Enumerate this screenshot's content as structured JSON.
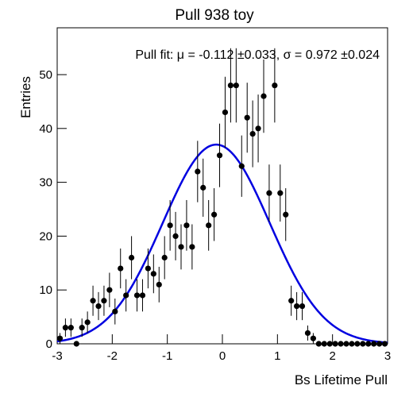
{
  "chart_data": {
    "type": "histogram",
    "title": "Pull 938 toy",
    "x_label": "Bs Lifetime Pull",
    "y_label": "Entries",
    "annotation": "Pull fit: μ = -0.112 ±0.033, σ = 0.972 ±0.024",
    "bins": [
      -3,
      -2.9,
      -2.8,
      -2.7,
      -2.6,
      -2.5,
      -2.4,
      -2.3,
      -2.2,
      -2.1,
      -2,
      -1.9,
      -1.8,
      -1.7,
      -1.6,
      -1.5,
      -1.4,
      -1.3,
      -1.2,
      -1.1,
      -1,
      -0.9,
      -0.8,
      -0.7,
      -0.6,
      -0.5,
      -0.4,
      -0.3,
      -0.2,
      -0.1,
      0,
      0.1,
      0.2,
      0.3,
      0.4,
      0.5,
      0.6,
      0.7,
      0.8,
      0.9,
      1,
      1.1,
      1.2,
      1.3,
      1.4,
      1.5,
      1.6,
      1.7,
      1.8,
      1.9,
      2,
      2.1,
      2.2,
      2.3,
      2.4,
      2.5,
      2.6,
      2.7,
      2.8,
      2.9,
      3
    ],
    "values": [
      1,
      3,
      3,
      0,
      3,
      4,
      8,
      7,
      8,
      10,
      6,
      14,
      9,
      16,
      9,
      9,
      14,
      13,
      11,
      16,
      22,
      20,
      18,
      22,
      18,
      32,
      29,
      22,
      24,
      35,
      43,
      48,
      48,
      33,
      42,
      39,
      40,
      46,
      28,
      48,
      28,
      24,
      8,
      7,
      7,
      2,
      1,
      0,
      0,
      0,
      0,
      0,
      0,
      0,
      0,
      0,
      0,
      0,
      0,
      0
    ],
    "errors": [
      1,
      1.7,
      1.7,
      0,
      1.7,
      2,
      2.8,
      2.6,
      2.8,
      3.2,
      2.4,
      3.7,
      3,
      4,
      3,
      3,
      3.7,
      3.6,
      3.3,
      4,
      4.7,
      4.5,
      4.2,
      4.7,
      4.2,
      5.7,
      5.4,
      4.7,
      4.9,
      5.9,
      6.6,
      6.9,
      6.9,
      5.7,
      6.5,
      6.2,
      6.3,
      6.8,
      5.3,
      6.9,
      5.3,
      4.9,
      2.8,
      2.6,
      2.6,
      1.4,
      1,
      0,
      0,
      0,
      0,
      0,
      0,
      0,
      0,
      0,
      0,
      0,
      0,
      0
    ],
    "color": "#000000",
    "fit": {
      "amplitude": 37,
      "mu": -0.112,
      "sigma": 0.972,
      "color": "#0000e0"
    },
    "xlim": [
      -3,
      3
    ],
    "ylim": [
      0,
      58.7
    ],
    "xticks": [
      -3,
      -2,
      -1,
      0,
      1,
      2,
      3
    ],
    "yticks": [
      0,
      10,
      20,
      30,
      40,
      50
    ]
  }
}
